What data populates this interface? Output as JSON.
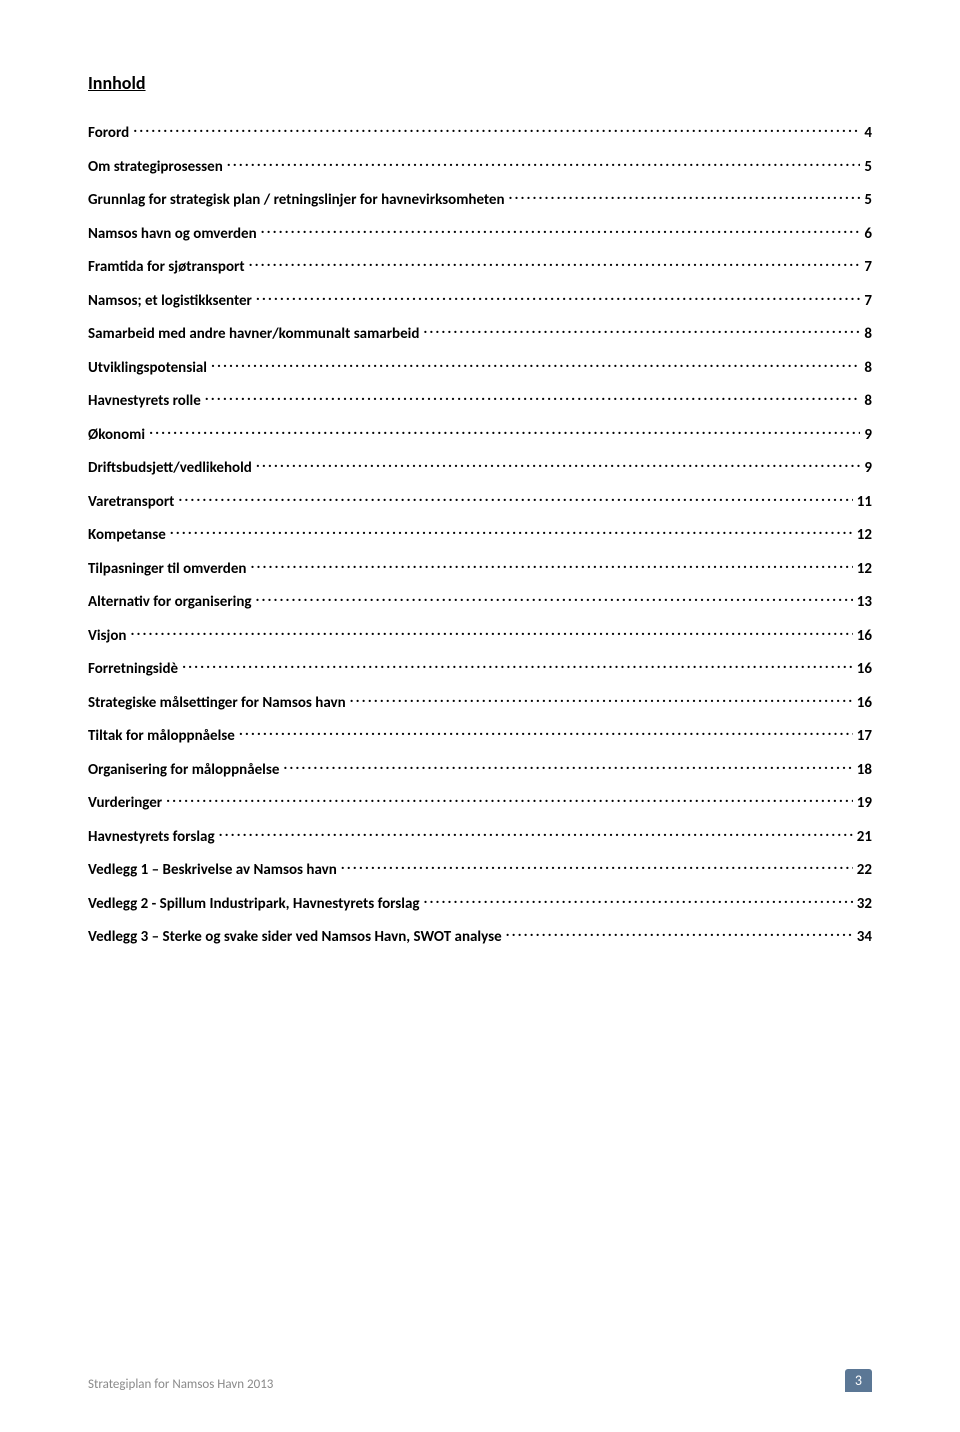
{
  "title": "Innhold",
  "toc": [
    {
      "label": "Forord",
      "page": "4"
    },
    {
      "label": "Om strategiprosessen",
      "page": "5"
    },
    {
      "label": "Grunnlag for strategisk plan / retningslinjer for havnevirksomheten",
      "page": "5"
    },
    {
      "label": "Namsos havn og omverden",
      "page": "6"
    },
    {
      "label": "Framtida for sjøtransport",
      "page": "7"
    },
    {
      "label": "Namsos; et logistikksenter",
      "page": "7"
    },
    {
      "label": "Samarbeid med andre havner/kommunalt samarbeid",
      "page": "8"
    },
    {
      "label": "Utviklingspotensial",
      "page": "8"
    },
    {
      "label": "Havnestyrets rolle",
      "page": "8"
    },
    {
      "label": "Økonomi",
      "page": "9"
    },
    {
      "label": "Driftsbudsjett/vedlikehold",
      "page": "9"
    },
    {
      "label": "Varetransport",
      "page": "11"
    },
    {
      "label": "Kompetanse",
      "page": "12"
    },
    {
      "label": "Tilpasninger til omverden",
      "page": "12"
    },
    {
      "label": "Alternativ for organisering",
      "page": "13"
    },
    {
      "label": "Visjon",
      "page": "16"
    },
    {
      "label": "Forretningsidè",
      "page": "16"
    },
    {
      "label": "Strategiske målsettinger for Namsos havn",
      "page": "16"
    },
    {
      "label": "Tiltak for måloppnåelse",
      "page": "17"
    },
    {
      "label": "Organisering for måloppnåelse",
      "page": "18"
    },
    {
      "label": "Vurderinger",
      "page": "19"
    },
    {
      "label": "Havnestyrets forslag",
      "page": "21"
    },
    {
      "label": "Vedlegg 1 – Beskrivelse av Namsos havn",
      "page": "22"
    },
    {
      "label": "Vedlegg 2 - Spillum Industripark, Havnestyrets forslag",
      "page": "32"
    },
    {
      "label": "Vedlegg 3 – Sterke og svake sider ved Namsos Havn, SWOT analyse",
      "page": "34"
    }
  ],
  "footer_text": "Strategiplan for Namsos Havn 2013",
  "page_number": "3",
  "colors": {
    "text": "#000000",
    "footer_text": "#8a8a8a",
    "badge_bg": "#5b7795",
    "badge_text": "#ffffff",
    "background": "#ffffff"
  }
}
